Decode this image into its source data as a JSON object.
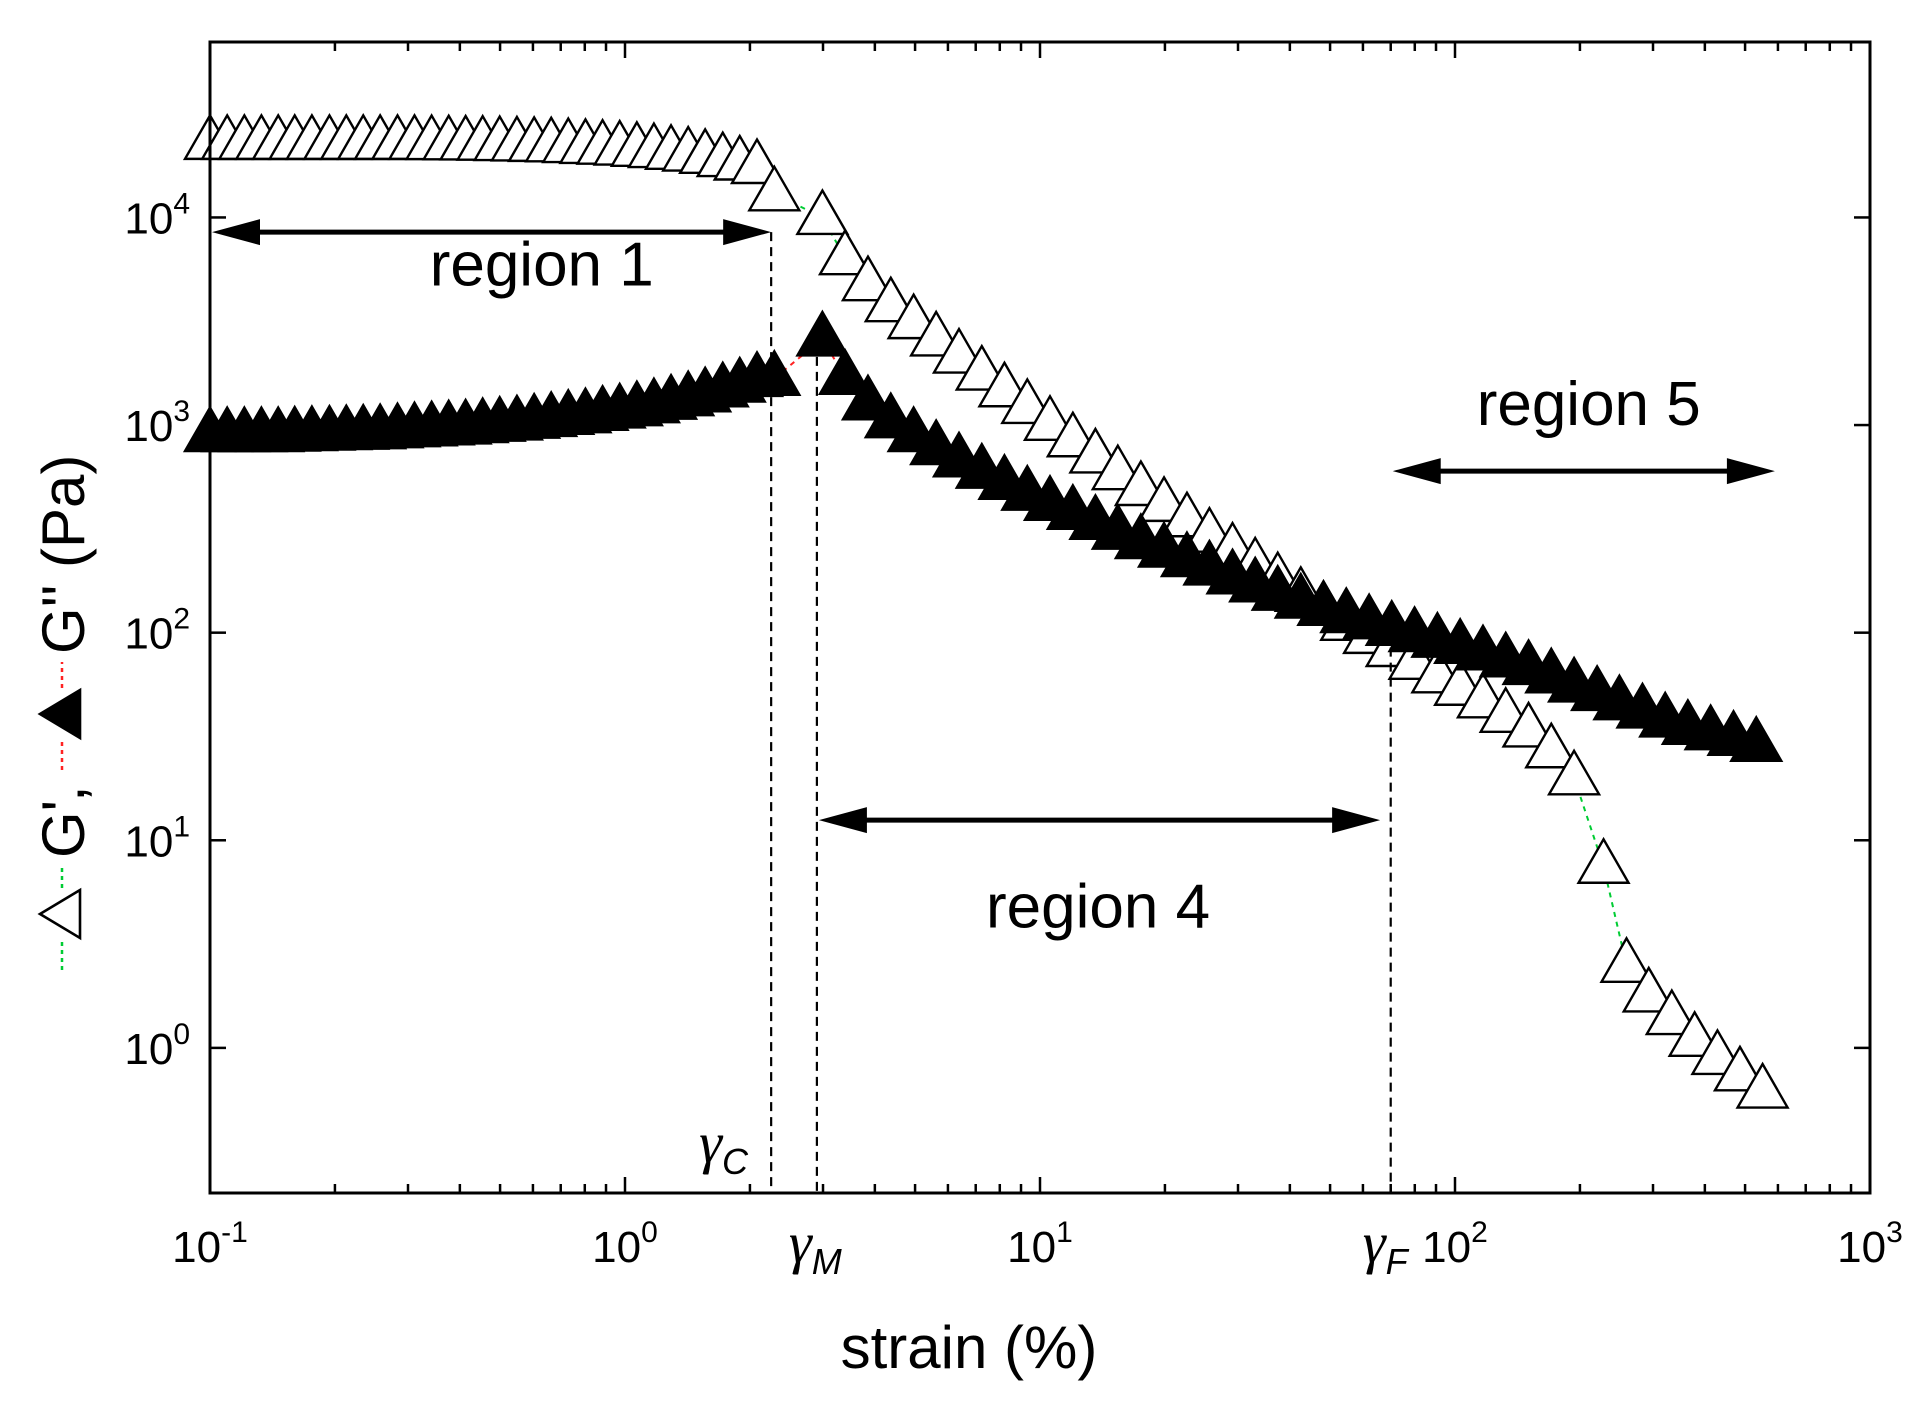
{
  "chart_data": {
    "type": "scatter",
    "xscale": "log",
    "yscale": "log",
    "xlim": [
      0.1,
      1000
    ],
    "ylim": [
      0.2,
      70000
    ],
    "xlabel": "strain (%)",
    "ylabel": {
      "g_prime": "G'",
      "sep": ",",
      "g_double_prime": "G''",
      "unit": "(Pa)"
    },
    "x_ticks": [
      {
        "base": "10",
        "exp": "-1",
        "value": 0.1
      },
      {
        "base": "10",
        "exp": "0",
        "value": 1
      },
      {
        "base": "10",
        "exp": "1",
        "value": 10
      },
      {
        "base": "10",
        "exp": "2",
        "value": 100
      },
      {
        "base": "10",
        "exp": "3",
        "value": 1000
      }
    ],
    "y_ticks": [
      {
        "base": "10",
        "exp": "0",
        "value": 1
      },
      {
        "base": "10",
        "exp": "1",
        "value": 10
      },
      {
        "base": "10",
        "exp": "2",
        "value": 100
      },
      {
        "base": "10",
        "exp": "3",
        "value": 1000
      },
      {
        "base": "10",
        "exp": "4",
        "value": 10000
      }
    ],
    "series": [
      {
        "name": "G'",
        "marker": "open-triangle",
        "line_color": "#00cc33",
        "x": [
          0.1,
          0.11,
          0.121,
          0.133,
          0.146,
          0.16,
          0.176,
          0.194,
          0.213,
          0.234,
          0.257,
          0.283,
          0.311,
          0.342,
          0.376,
          0.413,
          0.454,
          0.499,
          0.549,
          0.604,
          0.664,
          0.73,
          0.803,
          0.883,
          0.971,
          1.068,
          1.174,
          1.291,
          1.42,
          1.56,
          1.72,
          1.89,
          2.08,
          2.29,
          2.99,
          3.39,
          3.85,
          4.37,
          4.96,
          5.62,
          6.38,
          7.24,
          8.21,
          9.32,
          10.57,
          12,
          13.6,
          15.4,
          17.5,
          19.9,
          22.6,
          25.6,
          29.1,
          33,
          37.4,
          42.5,
          48.2,
          54.7,
          62.1,
          70.4,
          79.9,
          90.7,
          102.9,
          116.8,
          132.5,
          150.4,
          170.6,
          193.6,
          228,
          259,
          293,
          333,
          378,
          429,
          486,
          551
        ],
        "y": [
          23000,
          23000,
          23000,
          23000,
          23000,
          23000,
          23000,
          23000,
          23000,
          23000,
          23000,
          23000,
          23000,
          22950,
          22900,
          22850,
          22800,
          22700,
          22600,
          22500,
          22400,
          22200,
          22000,
          21800,
          21600,
          21300,
          21000,
          20600,
          20200,
          19700,
          19000,
          18300,
          17600,
          13000,
          10000,
          6400,
          4800,
          3800,
          3150,
          2600,
          2150,
          1780,
          1480,
          1230,
          1020,
          850,
          710,
          590,
          495,
          415,
          350,
          295,
          250,
          212,
          180,
          153,
          131,
          111,
          96,
          83,
          72,
          62,
          54,
          47,
          40,
          34,
          27,
          20,
          7.5,
          2.5,
          1.8,
          1.4,
          1.1,
          0.9,
          0.75,
          0.62
        ]
      },
      {
        "name": "G''",
        "marker": "filled-triangle",
        "line_color": "#ff2222",
        "x": [
          0.1,
          0.11,
          0.121,
          0.133,
          0.146,
          0.16,
          0.176,
          0.194,
          0.213,
          0.234,
          0.257,
          0.283,
          0.311,
          0.342,
          0.376,
          0.413,
          0.454,
          0.499,
          0.549,
          0.604,
          0.664,
          0.73,
          0.803,
          0.883,
          0.971,
          1.068,
          1.174,
          1.291,
          1.42,
          1.56,
          1.72,
          1.89,
          2.08,
          2.29,
          2.99,
          3.39,
          3.85,
          4.37,
          4.96,
          5.62,
          6.38,
          7.24,
          8.21,
          9.32,
          10.57,
          12,
          13.6,
          15.4,
          17.5,
          19.9,
          22.6,
          25.6,
          29.1,
          33,
          37.4,
          42.5,
          48.2,
          54.7,
          62.1,
          70.4,
          79.9,
          90.7,
          102.9,
          116.8,
          132.5,
          150.4,
          170.6,
          193.6,
          220,
          249,
          283,
          321,
          364,
          413,
          469,
          532
        ],
        "y": [
          900,
          900,
          900,
          900,
          900,
          905,
          910,
          915,
          920,
          925,
          930,
          940,
          950,
          960,
          970,
          980,
          995,
          1010,
          1025,
          1045,
          1065,
          1090,
          1110,
          1140,
          1170,
          1200,
          1240,
          1290,
          1340,
          1400,
          1480,
          1560,
          1660,
          1680,
          2600,
          1700,
          1280,
          1050,
          900,
          780,
          680,
          600,
          530,
          470,
          420,
          380,
          340,
          305,
          275,
          250,
          225,
          205,
          186,
          170,
          155,
          142,
          131,
          121,
          113,
          105,
          98,
          92,
          86,
          80,
          74,
          68,
          62,
          56,
          51,
          46,
          42,
          38,
          35,
          33,
          31,
          29
        ]
      }
    ],
    "annotations": {
      "regions": [
        {
          "label": "region 1",
          "from": 0.1,
          "to": 2.25,
          "arrow_y": 8500,
          "label_x": 0.63,
          "label_y": 4700
        },
        {
          "label": "region 4",
          "from": 2.9,
          "to": 66,
          "arrow_y": 12.5,
          "label_x": 13.8,
          "label_y": 3.8
        },
        {
          "label": "region 5",
          "from": 70,
          "to": 590,
          "arrow_y": 600,
          "label_x": 210,
          "label_y": 1000
        }
      ],
      "markers": [
        {
          "symbol": "γ",
          "sub": "C",
          "x": 2.25,
          "label_side": "left"
        },
        {
          "symbol": "γ",
          "sub": "M",
          "x": 2.9,
          "label_side": "below"
        },
        {
          "symbol": "γ",
          "sub": "F",
          "x": 70,
          "label_side": "below"
        }
      ]
    }
  }
}
